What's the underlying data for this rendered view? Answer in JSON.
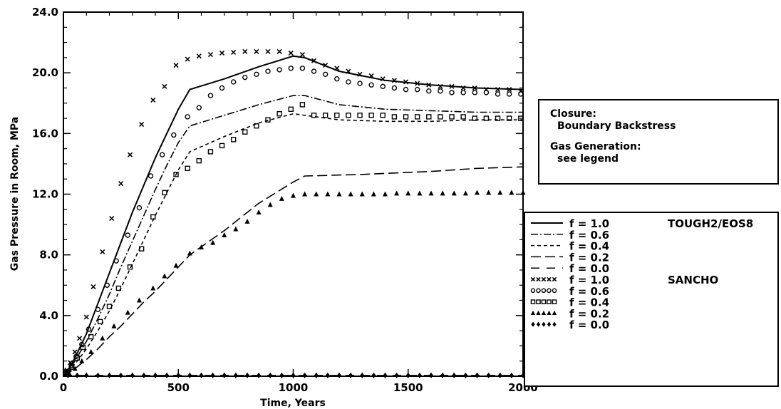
{
  "chart_data": {
    "type": "line",
    "xlabel": "Time, Years",
    "ylabel": "Gas Pressure in Room, MPa",
    "xlim": [
      0,
      2000
    ],
    "ylim": [
      0,
      24
    ],
    "xticks": [
      0,
      500,
      1000,
      1500,
      2000
    ],
    "xtick_labels": [
      "0",
      "500",
      "1000",
      "1500",
      "2000"
    ],
    "yticks": [
      0,
      4,
      8,
      12,
      16,
      20,
      24
    ],
    "ytick_labels": [
      "0.0",
      "4.0",
      "8.0",
      "12.0",
      "16.0",
      "20.0",
      "24.0"
    ],
    "grid": false,
    "info_box": {
      "closure_label": "Closure:",
      "closure_value": "Boundary Backstress",
      "gas_label": "Gas Generation:",
      "gas_value": "see legend"
    },
    "series": [
      {
        "name": "f = 1.0",
        "group_label": "TOUGH2/EOS8",
        "style": "solid",
        "x": [
          0,
          25,
          50,
          100,
          150,
          200,
          250,
          300,
          350,
          400,
          450,
          500,
          550,
          700,
          850,
          1000,
          1050,
          1200,
          1400,
          1600,
          1800,
          2000
        ],
        "y": [
          0,
          0.5,
          1.2,
          2.8,
          4.8,
          6.8,
          8.8,
          10.8,
          12.6,
          14.4,
          16.0,
          17.6,
          18.9,
          19.6,
          20.4,
          21.1,
          21.0,
          20.1,
          19.5,
          19.2,
          19.0,
          18.9
        ]
      },
      {
        "name": "f = 0.6",
        "group_label": "",
        "style": "dashdot",
        "x": [
          0,
          25,
          50,
          100,
          150,
          200,
          250,
          300,
          350,
          400,
          450,
          500,
          550,
          700,
          850,
          1000,
          1050,
          1200,
          1400,
          1600,
          1800,
          2000
        ],
        "y": [
          0,
          0.4,
          1.0,
          2.3,
          3.8,
          5.4,
          7.2,
          8.9,
          10.6,
          12.3,
          13.9,
          15.4,
          16.5,
          17.2,
          17.9,
          18.5,
          18.5,
          17.9,
          17.6,
          17.5,
          17.4,
          17.4
        ]
      },
      {
        "name": "f = 0.4",
        "group_label": "",
        "style": "shortdash",
        "x": [
          0,
          25,
          50,
          100,
          150,
          200,
          250,
          300,
          350,
          400,
          450,
          500,
          550,
          700,
          850,
          1000,
          1050,
          1200,
          1400,
          1600,
          1800,
          2000
        ],
        "y": [
          0,
          0.3,
          0.8,
          1.8,
          3.0,
          4.3,
          5.8,
          7.4,
          9.0,
          10.6,
          12.1,
          13.6,
          14.8,
          15.8,
          16.7,
          17.3,
          17.2,
          16.9,
          16.8,
          16.8,
          16.9,
          16.9
        ]
      },
      {
        "name": "f = 0.2",
        "group_label": "",
        "style": "longdash",
        "x": [
          0,
          50,
          100,
          150,
          200,
          250,
          300,
          350,
          400,
          450,
          500,
          550,
          700,
          850,
          1000,
          1050,
          1300,
          1600,
          1800,
          2000
        ],
        "y": [
          0,
          0.5,
          1.1,
          1.8,
          2.6,
          3.3,
          4.1,
          4.9,
          5.6,
          6.4,
          7.2,
          8.0,
          9.6,
          11.4,
          12.8,
          13.2,
          13.3,
          13.5,
          13.7,
          13.8
        ]
      },
      {
        "name": "f = 0.0",
        "group_label": "",
        "style": "widedash",
        "x": [
          0,
          500,
          1000,
          1500,
          2000
        ],
        "y": [
          0.05,
          0.05,
          0.05,
          0.05,
          0.05
        ]
      },
      {
        "name": "f = 1.0",
        "group_label": "SANCHO",
        "style": "marker-x",
        "x": [
          15,
          30,
          50,
          70,
          100,
          130,
          170,
          210,
          250,
          290,
          340,
          390,
          440,
          490,
          540,
          590,
          640,
          690,
          740,
          790,
          840,
          890,
          940,
          990,
          1040,
          1090,
          1140,
          1190,
          1240,
          1290,
          1340,
          1390,
          1440,
          1490,
          1540,
          1590,
          1640,
          1690,
          1740,
          1790,
          1840,
          1890,
          1940,
          1990
        ],
        "y": [
          0.4,
          0.9,
          1.6,
          2.5,
          3.9,
          5.9,
          8.2,
          10.4,
          12.7,
          14.6,
          16.6,
          18.2,
          19.1,
          20.5,
          20.9,
          21.1,
          21.2,
          21.3,
          21.35,
          21.4,
          21.4,
          21.4,
          21.4,
          21.3,
          21.2,
          20.8,
          20.5,
          20.3,
          20.1,
          19.9,
          19.8,
          19.6,
          19.5,
          19.4,
          19.3,
          19.2,
          19.1,
          19.1,
          19.0,
          19.0,
          18.9,
          18.9,
          18.9,
          18.8
        ]
      },
      {
        "name": "f = 0.6",
        "group_label": "",
        "style": "marker-o",
        "x": [
          15,
          35,
          55,
          80,
          110,
          150,
          190,
          230,
          280,
          330,
          380,
          430,
          480,
          540,
          590,
          640,
          690,
          740,
          790,
          840,
          890,
          940,
          990,
          1040,
          1090,
          1140,
          1190,
          1240,
          1290,
          1340,
          1390,
          1440,
          1490,
          1540,
          1590,
          1640,
          1690,
          1740,
          1790,
          1840,
          1890,
          1940,
          1990
        ],
        "y": [
          0.3,
          0.7,
          1.3,
          2.1,
          3.1,
          4.4,
          6.0,
          7.6,
          9.3,
          11.1,
          13.2,
          14.6,
          15.9,
          17.1,
          17.7,
          18.5,
          19.0,
          19.4,
          19.7,
          19.9,
          20.1,
          20.2,
          20.3,
          20.3,
          20.1,
          19.9,
          19.6,
          19.4,
          19.3,
          19.2,
          19.1,
          19.0,
          18.9,
          18.9,
          18.8,
          18.8,
          18.7,
          18.7,
          18.7,
          18.7,
          18.6,
          18.6,
          18.6
        ]
      },
      {
        "name": "f = 0.4",
        "group_label": "",
        "style": "marker-square",
        "x": [
          15,
          35,
          60,
          85,
          120,
          160,
          200,
          240,
          290,
          340,
          390,
          440,
          490,
          540,
          590,
          640,
          690,
          740,
          790,
          840,
          890,
          940,
          990,
          1040,
          1090,
          1140,
          1190,
          1240,
          1290,
          1340,
          1390,
          1440,
          1490,
          1540,
          1590,
          1640,
          1690,
          1740,
          1790,
          1840,
          1890,
          1940,
          1990
        ],
        "y": [
          0.3,
          0.6,
          1.2,
          1.9,
          2.6,
          3.6,
          4.6,
          5.8,
          7.2,
          8.4,
          10.5,
          12.1,
          13.3,
          13.7,
          14.2,
          14.8,
          15.2,
          15.6,
          16.1,
          16.5,
          16.9,
          17.3,
          17.6,
          17.9,
          17.2,
          17.2,
          17.2,
          17.2,
          17.2,
          17.2,
          17.2,
          17.1,
          17.1,
          17.1,
          17.1,
          17.1,
          17.1,
          17.1,
          17.0,
          17.0,
          17.0,
          17.0,
          17.0
        ]
      },
      {
        "name": "f = 0.2",
        "group_label": "",
        "style": "marker-triangle",
        "x": [
          25,
          50,
          80,
          120,
          170,
          220,
          280,
          330,
          390,
          440,
          490,
          550,
          600,
          650,
          700,
          750,
          800,
          850,
          900,
          950,
          1000,
          1050,
          1100,
          1150,
          1200,
          1250,
          1300,
          1350,
          1400,
          1450,
          1500,
          1550,
          1600,
          1650,
          1700,
          1750,
          1800,
          1850,
          1900,
          1950,
          2000
        ],
        "y": [
          0.2,
          0.5,
          1.0,
          1.6,
          2.5,
          3.3,
          4.2,
          5.0,
          5.8,
          6.6,
          7.3,
          8.1,
          8.5,
          8.8,
          9.3,
          9.7,
          10.2,
          10.8,
          11.3,
          11.7,
          11.9,
          12.0,
          12.0,
          12.0,
          12.0,
          12.0,
          12.0,
          12.0,
          12.0,
          12.05,
          12.05,
          12.05,
          12.05,
          12.05,
          12.05,
          12.05,
          12.1,
          12.1,
          12.1,
          12.1,
          12.1
        ]
      },
      {
        "name": "f = 0.0",
        "group_label": "",
        "style": "marker-diamond",
        "x": [
          20,
          60,
          100,
          150,
          200,
          250,
          300,
          350,
          400,
          450,
          500,
          550,
          600,
          650,
          700,
          750,
          800,
          850,
          900,
          950,
          1000,
          1050,
          1100,
          1150,
          1200,
          1250,
          1300,
          1350,
          1400,
          1450,
          1500,
          1550,
          1600,
          1650,
          1700,
          1750,
          1800,
          1850,
          1900,
          1950,
          2000
        ],
        "y": [
          0.05,
          0.05,
          0.05,
          0.05,
          0.05,
          0.05,
          0.05,
          0.05,
          0.05,
          0.05,
          0.05,
          0.05,
          0.05,
          0.05,
          0.05,
          0.05,
          0.05,
          0.05,
          0.05,
          0.05,
          0.05,
          0.05,
          0.05,
          0.05,
          0.05,
          0.05,
          0.05,
          0.05,
          0.05,
          0.05,
          0.05,
          0.05,
          0.05,
          0.05,
          0.05,
          0.05,
          0.05,
          0.05,
          0.05,
          0.05,
          0.05
        ]
      }
    ]
  }
}
